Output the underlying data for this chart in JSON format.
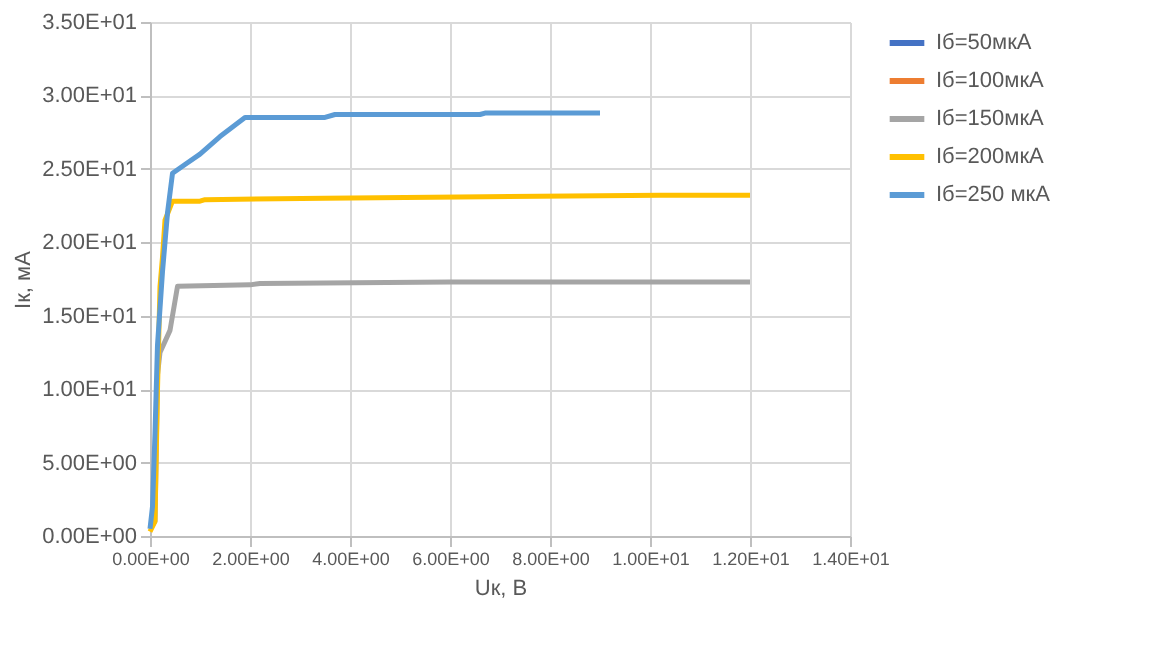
{
  "chart_data": {
    "type": "line",
    "xlabel": "Uк, В",
    "ylabel": "Iк, мА",
    "xlim": [
      0,
      14
    ],
    "ylim": [
      0,
      35
    ],
    "xticks": [
      {
        "value": 0,
        "label": "0.00E+00"
      },
      {
        "value": 2,
        "label": "2.00E+00"
      },
      {
        "value": 4,
        "label": "4.00E+00"
      },
      {
        "value": 6,
        "label": "6.00E+00"
      },
      {
        "value": 8,
        "label": "8.00E+00"
      },
      {
        "value": 10,
        "label": "1.00E+01"
      },
      {
        "value": 12,
        "label": "1.20E+01"
      },
      {
        "value": 14,
        "label": "1.40E+01"
      }
    ],
    "yticks": [
      {
        "value": 0,
        "label": "0.00E+00"
      },
      {
        "value": 5,
        "label": "5.00E+00"
      },
      {
        "value": 10,
        "label": "1.00E+01"
      },
      {
        "value": 15,
        "label": "1.50E+01"
      },
      {
        "value": 20,
        "label": "2.00E+01"
      },
      {
        "value": 25,
        "label": "2.50E+01"
      },
      {
        "value": 30,
        "label": "3.00E+01"
      },
      {
        "value": 35,
        "label": "3.50E+01"
      }
    ],
    "grid": true,
    "legend": "right",
    "marker": "none",
    "line_style": "solid",
    "series": [
      {
        "name": "Iб=50мкА",
        "color": "#4472c4"
      },
      {
        "name": "Iб=100мкА",
        "color": "#ed7d31"
      },
      {
        "name": "Iб=150мкА",
        "color": "#a5a5a5",
        "x": [
          0,
          0.1,
          0.12,
          0.15,
          0.2,
          0.4,
          0.55,
          2.0,
          2.2,
          6.0,
          12
        ],
        "values": [
          0.5,
          1,
          5,
          11,
          12.5,
          14,
          17,
          17.1,
          17.2,
          17.3,
          17.3
        ]
      },
      {
        "name": "Iб=200мкА",
        "color": "#ffc000",
        "x": [
          0,
          0.1,
          0.15,
          0.2,
          0.25,
          0.3,
          0.45,
          1.0,
          1.1,
          3.5,
          6.7,
          10.2,
          12
        ],
        "values": [
          0.3,
          1,
          10,
          17,
          19,
          21.5,
          22.8,
          22.8,
          22.9,
          23.0,
          23.1,
          23.2,
          23.2
        ]
      },
      {
        "name": "Iб=250 мкА",
        "color": "#5b9bd5",
        "x": [
          0,
          0.05,
          0.1,
          0.15,
          0.25,
          0.35,
          0.45,
          0.7,
          1.0,
          1.4,
          1.9,
          3.5,
          3.7,
          6.6,
          6.7,
          9.0
        ],
        "values": [
          0.5,
          2,
          7,
          13,
          18,
          22,
          24.7,
          25.3,
          26,
          27.2,
          28.5,
          28.5,
          28.7,
          28.7,
          28.8,
          28.8
        ]
      }
    ]
  }
}
